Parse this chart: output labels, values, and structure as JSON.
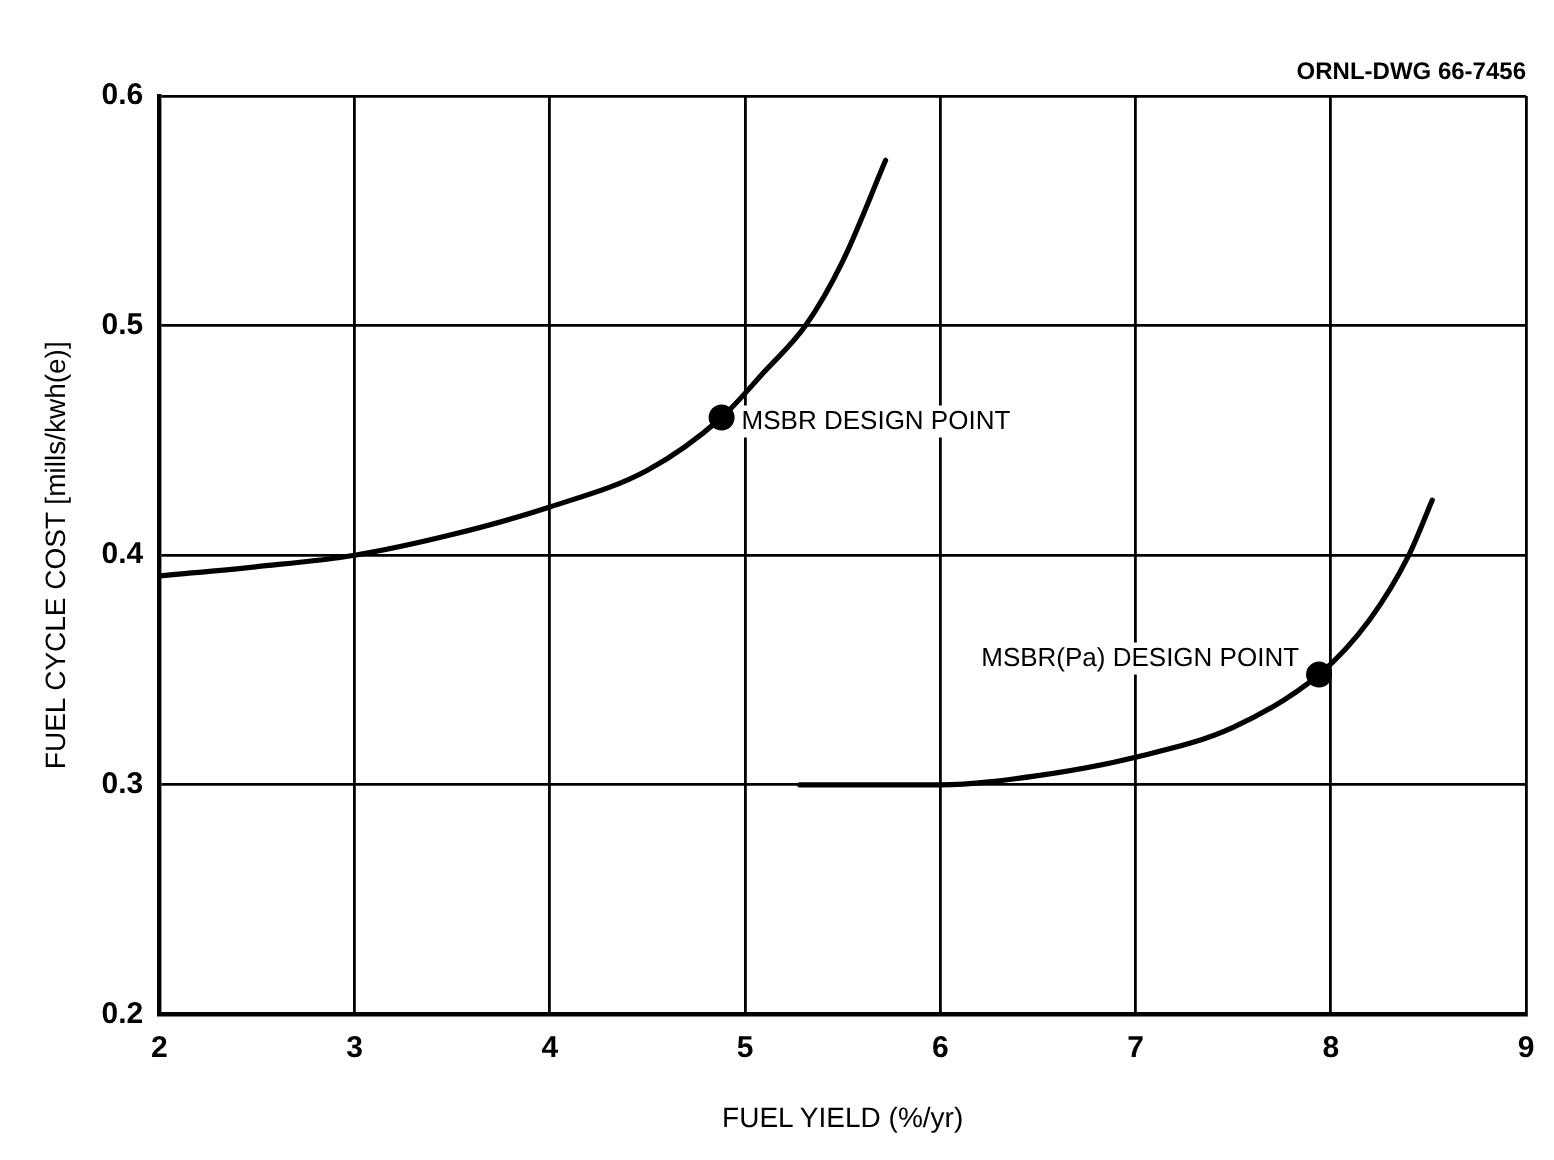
{
  "chart_data": {
    "type": "line",
    "xlabel": "FUEL YIELD (%/yr)",
    "ylabel": "FUEL CYCLE COST [mills/kwh(e)]",
    "xlim": [
      2,
      9
    ],
    "xticks": [
      2,
      3,
      4,
      5,
      6,
      7,
      8,
      9
    ],
    "ylim": [
      0.2,
      0.6
    ],
    "yticks": [
      0.2,
      0.3,
      0.4,
      0.5,
      0.6
    ],
    "grid": true,
    "legend": false,
    "line_style": "solid",
    "series": [
      {
        "color": "#000000",
        "marker": "none",
        "x": [
          2,
          2.5,
          3,
          3.5,
          4,
          4.5,
          4.88,
          5.1,
          5.31,
          5.5,
          5.72
        ],
        "values": [
          0.391,
          0.395,
          0.4,
          0.409,
          0.421,
          0.437,
          0.46,
          0.48,
          0.5,
          0.528,
          0.572
        ]
      },
      {
        "color": "#000000",
        "marker": "none",
        "x": [
          5.28,
          6,
          6.5,
          7,
          7.5,
          7.94,
          8.2,
          8.4,
          8.52
        ],
        "values": [
          0.3,
          0.3,
          0.304,
          0.312,
          0.325,
          0.348,
          0.372,
          0.4,
          0.424
        ]
      },
      {
        "type": "scatter",
        "color": "#000000",
        "marker": "circle",
        "x": [
          4.88,
          7.94
        ],
        "values": [
          0.46,
          0.348
        ]
      }
    ],
    "annotations": [
      {
        "text": "MSBR DESIGN POINT",
        "x": 4.88,
        "y": 0.46
      },
      {
        "text": "MSBR(Pa) DESIGN POINT",
        "x": 7.94,
        "y": 0.348
      },
      "ORNL-DWG 66-7456"
    ]
  }
}
